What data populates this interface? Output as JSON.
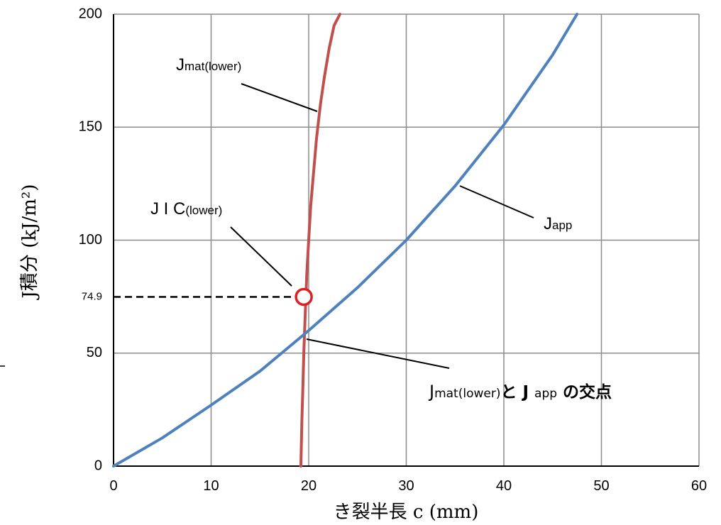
{
  "chart_data": {
    "type": "line",
    "xlabel": "き裂半長 c (mm)",
    "ylabel": "J積分 (kJ/m²)",
    "xlim": [
      0,
      60
    ],
    "ylim": [
      0,
      200
    ],
    "x_ticks": [
      "0",
      "10",
      "20",
      "30",
      "40",
      "50",
      "60"
    ],
    "y_ticks": [
      "0",
      "50",
      "100",
      "150",
      "200"
    ],
    "y_extra_tick": "74.9",
    "grid": true,
    "series": [
      {
        "name": "Jmat(lower)",
        "color": "#c0504d",
        "x": [
          19.2,
          19.25,
          19.3,
          19.4,
          19.5,
          19.6,
          19.8,
          20.0,
          20.2,
          20.5,
          20.8,
          21.2,
          21.6,
          22.1,
          22.6,
          23.2
        ],
        "y": [
          0,
          10,
          20,
          35,
          50,
          62,
          85,
          100,
          115,
          130,
          145,
          160,
          172,
          185,
          195,
          200
        ]
      },
      {
        "name": "Japp",
        "color": "#4f81bd",
        "x": [
          0,
          5,
          10,
          15,
          20,
          25,
          30,
          35,
          40,
          45,
          47.5
        ],
        "y": [
          0,
          12.5,
          27,
          42,
          60,
          79,
          100,
          124,
          151,
          182,
          200
        ]
      }
    ],
    "annotations": {
      "jmat_label": {
        "main": "J",
        "sub": "mat(lower)"
      },
      "japp_label": {
        "main": "J",
        "sub": "app"
      },
      "jic_label": {
        "main": "J I C",
        "sub": "(lower)"
      },
      "intersection_label": {
        "j1": "J",
        "s1": "mat(lower)",
        "mid": "と J ",
        "s2": "app",
        "tail": " の交点"
      }
    },
    "marker": {
      "x": 19.5,
      "y": 74.9,
      "color": "#e02020"
    },
    "dashed_reference_y": 74.9
  }
}
